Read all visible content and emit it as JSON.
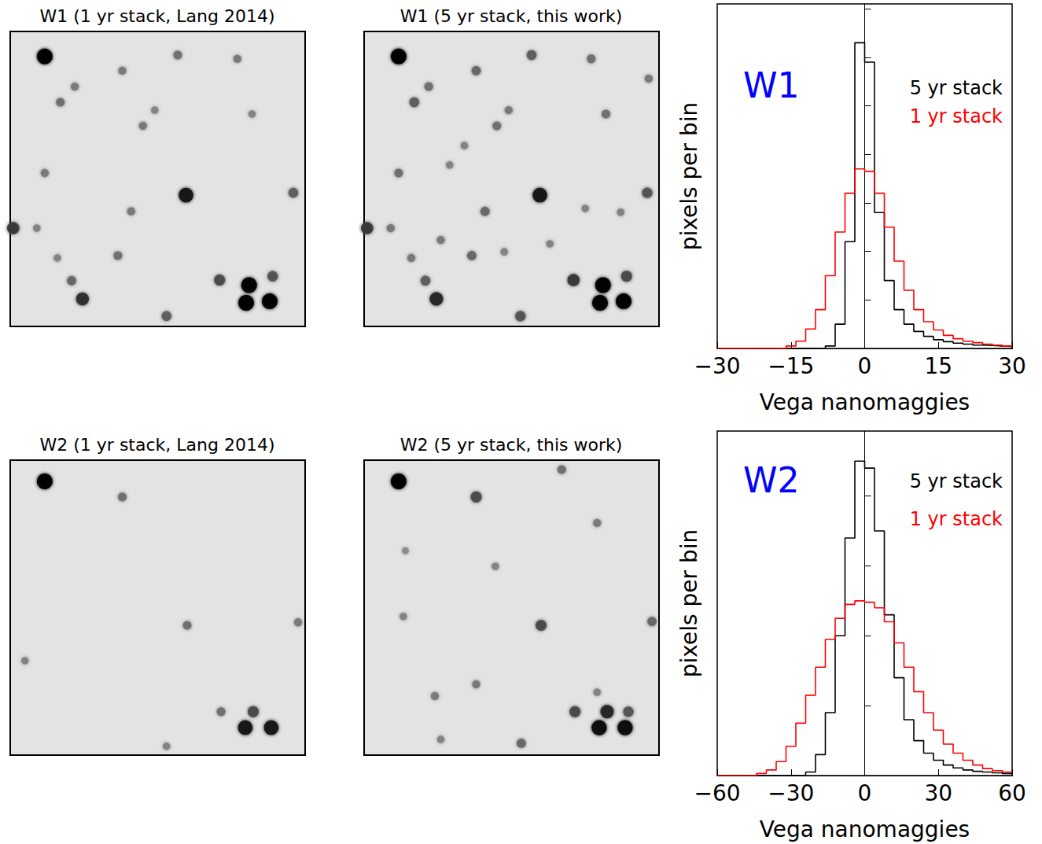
{
  "chart_data": [
    {
      "type": "image",
      "title": "W1 (1 yr stack, Lang 2014)",
      "xlim": [
        0,
        100
      ],
      "ylim": [
        0,
        100
      ],
      "tick_labels": false,
      "sources": [
        [
          11.7,
          8.5,
          1.0
        ],
        [
          56.8,
          8,
          0.4
        ],
        [
          77,
          9.3,
          0.35
        ],
        [
          38,
          13.3,
          0.35
        ],
        [
          21.9,
          18.7,
          0.35
        ],
        [
          17,
          24,
          0.4
        ],
        [
          49,
          26.7,
          0.3
        ],
        [
          45,
          32,
          0.35
        ],
        [
          82,
          28,
          0.3
        ],
        [
          11.7,
          48,
          0.35
        ],
        [
          59.6,
          55.5,
          0.9
        ],
        [
          96,
          54.7,
          0.5
        ],
        [
          41,
          61,
          0.35
        ],
        [
          1,
          66.7,
          0.7
        ],
        [
          9,
          66.7,
          0.3
        ],
        [
          36.5,
          76,
          0.4
        ],
        [
          16,
          76.8,
          0.3
        ],
        [
          20.8,
          84.5,
          0.45
        ],
        [
          24.5,
          90.7,
          0.75
        ],
        [
          71,
          84.3,
          0.6
        ],
        [
          81,
          86,
          1.0
        ],
        [
          89,
          83,
          0.55
        ],
        [
          80,
          92,
          1.0
        ],
        [
          88,
          91.5,
          1.0
        ],
        [
          53,
          96.5,
          0.5
        ]
      ]
    },
    {
      "type": "image",
      "title": "W1 (5 yr stack, this work)",
      "xlim": [
        0,
        100
      ],
      "ylim": [
        0,
        100
      ],
      "tick_labels": false,
      "sources": [
        [
          11.7,
          8.5,
          1.0
        ],
        [
          56.8,
          8,
          0.5
        ],
        [
          77,
          9.3,
          0.4
        ],
        [
          38,
          13.3,
          0.45
        ],
        [
          96.5,
          16,
          0.35
        ],
        [
          21.9,
          18.7,
          0.4
        ],
        [
          17,
          24,
          0.5
        ],
        [
          49,
          26.7,
          0.35
        ],
        [
          45,
          32,
          0.4
        ],
        [
          82,
          28,
          0.4
        ],
        [
          34,
          38.7,
          0.3
        ],
        [
          11.7,
          48,
          0.4
        ],
        [
          29,
          45.3,
          0.3
        ],
        [
          59.6,
          55.5,
          0.9
        ],
        [
          96,
          54.7,
          0.55
        ],
        [
          41,
          61,
          0.45
        ],
        [
          75,
          60,
          0.3
        ],
        [
          87,
          61.3,
          0.3
        ],
        [
          1,
          66.7,
          0.7
        ],
        [
          9,
          66.7,
          0.35
        ],
        [
          26,
          70.7,
          0.35
        ],
        [
          36.5,
          76,
          0.45
        ],
        [
          16,
          76.8,
          0.35
        ],
        [
          47.5,
          74.7,
          0.3
        ],
        [
          20.8,
          84.5,
          0.5
        ],
        [
          24.5,
          90.7,
          0.8
        ],
        [
          71,
          84.3,
          0.7
        ],
        [
          81,
          86,
          1.0
        ],
        [
          89,
          83,
          0.6
        ],
        [
          80,
          92,
          1.0
        ],
        [
          88,
          91.5,
          1.0
        ],
        [
          53,
          96.5,
          0.55
        ],
        [
          63,
          72,
          0.3
        ]
      ]
    },
    {
      "type": "histogram",
      "annotation": "W1",
      "xlabel": "Vega nanomaggies",
      "ylabel": "pixels per bin",
      "bins": [
        -30,
        -28,
        -26,
        -24,
        -22,
        -20,
        -18,
        -16,
        -14,
        -12,
        -10,
        -8,
        -6,
        -4,
        -2,
        0,
        2,
        4,
        6,
        8,
        10,
        12,
        14,
        16,
        18,
        20,
        22,
        24,
        26,
        28,
        30
      ],
      "series": [
        {
          "name": "5 yr stack",
          "color": "#000000",
          "values": [
            0,
            0,
            0,
            0,
            0,
            0,
            0,
            0,
            0,
            0,
            0,
            0.05,
            0.5,
            2.2,
            6.3,
            5.9,
            2.8,
            1.4,
            0.8,
            0.5,
            0.35,
            0.25,
            0.18,
            0.14,
            0.11,
            0.09,
            0.07,
            0.06,
            0.05,
            0.04
          ]
        },
        {
          "name": "1 yr stack",
          "color": "#ff0000",
          "values": [
            0,
            0,
            0,
            0,
            0,
            0,
            0,
            0.05,
            0.15,
            0.4,
            0.8,
            1.5,
            2.4,
            3.2,
            3.7,
            3.65,
            3.2,
            2.5,
            1.8,
            1.2,
            0.8,
            0.55,
            0.38,
            0.27,
            0.2,
            0.15,
            0.12,
            0.09,
            0.07,
            0.05
          ]
        }
      ],
      "xlim": [
        -30,
        30
      ],
      "xticks": [
        {
          "value": -30,
          "label": "−30"
        },
        {
          "value": -15,
          "label": "−15"
        },
        0,
        15,
        30
      ],
      "ylim": [
        0,
        7.1
      ],
      "yticks": [
        0,
        1,
        2,
        3,
        4,
        5,
        6,
        7
      ],
      "tick_labels": "x",
      "legend": "upper right"
    },
    {
      "type": "image",
      "title": "W2 (1 yr stack, Lang 2014)",
      "xlim": [
        0,
        100
      ],
      "ylim": [
        0,
        100
      ],
      "tick_labels": false,
      "sources": [
        [
          11.7,
          7.2,
          1.0
        ],
        [
          38,
          12.5,
          0.4
        ],
        [
          60,
          56,
          0.4
        ],
        [
          97.6,
          55,
          0.35
        ],
        [
          5,
          68,
          0.3
        ],
        [
          71.5,
          85.3,
          0.4
        ],
        [
          82.4,
          85.3,
          0.6
        ],
        [
          79.7,
          90.7,
          0.9
        ],
        [
          88.5,
          90.7,
          0.9
        ],
        [
          53,
          97,
          0.3
        ]
      ]
    },
    {
      "type": "image",
      "title": "W2 (5 yr stack, this work)",
      "xlim": [
        0,
        100
      ],
      "ylim": [
        0,
        100
      ],
      "tick_labels": false,
      "sources": [
        [
          11.7,
          7.2,
          1.0
        ],
        [
          67,
          3.2,
          0.4
        ],
        [
          38,
          12.5,
          0.6
        ],
        [
          79,
          21.3,
          0.35
        ],
        [
          14,
          30.7,
          0.25
        ],
        [
          44.5,
          36,
          0.3
        ],
        [
          60,
          56,
          0.6
        ],
        [
          97.6,
          54.7,
          0.45
        ],
        [
          13.3,
          53,
          0.3
        ],
        [
          38,
          76,
          0.35
        ],
        [
          24,
          80,
          0.35
        ],
        [
          79,
          78.7,
          0.3
        ],
        [
          71.5,
          85.3,
          0.6
        ],
        [
          82.4,
          85.3,
          0.8
        ],
        [
          89.6,
          85.3,
          0.55
        ],
        [
          79.7,
          90.7,
          0.95
        ],
        [
          88.5,
          90.7,
          0.95
        ],
        [
          53.3,
          96,
          0.45
        ],
        [
          26,
          94.7,
          0.3
        ]
      ]
    },
    {
      "type": "histogram",
      "annotation": "W2",
      "xlabel": "Vega nanomaggies",
      "ylabel": "pixels per bin",
      "bins": [
        -60,
        -56,
        -52,
        -48,
        -44,
        -40,
        -36,
        -32,
        -28,
        -24,
        -20,
        -16,
        -12,
        -8,
        -4,
        0,
        4,
        8,
        12,
        16,
        20,
        24,
        28,
        32,
        36,
        40,
        44,
        48,
        52,
        56,
        60
      ],
      "series": [
        {
          "name": "5 yr stack",
          "color": "#000000",
          "values": [
            0,
            0,
            0,
            0,
            0,
            0,
            0,
            0,
            0,
            0.05,
            0.3,
            0.9,
            2.0,
            3.4,
            4.5,
            4.4,
            3.5,
            2.3,
            1.4,
            0.8,
            0.5,
            0.32,
            0.22,
            0.15,
            0.11,
            0.08,
            0.06,
            0.05,
            0.04,
            0.03
          ]
        },
        {
          "name": "1 yr stack",
          "color": "#ff0000",
          "values": [
            0,
            0,
            0,
            0,
            0.03,
            0.08,
            0.2,
            0.42,
            0.75,
            1.15,
            1.55,
            1.95,
            2.25,
            2.45,
            2.5,
            2.48,
            2.4,
            2.2,
            1.9,
            1.55,
            1.2,
            0.9,
            0.65,
            0.45,
            0.32,
            0.22,
            0.15,
            0.1,
            0.07,
            0.05
          ]
        }
      ],
      "xlim": [
        -60,
        60
      ],
      "xticks": [
        {
          "value": -60,
          "label": "−60"
        },
        {
          "value": -30,
          "label": "−30"
        },
        0,
        30,
        60
      ],
      "ylim": [
        0,
        4.93
      ],
      "yticks": [
        0,
        1,
        2,
        3,
        4
      ],
      "tick_labels": "x",
      "legend": "upper right"
    }
  ]
}
